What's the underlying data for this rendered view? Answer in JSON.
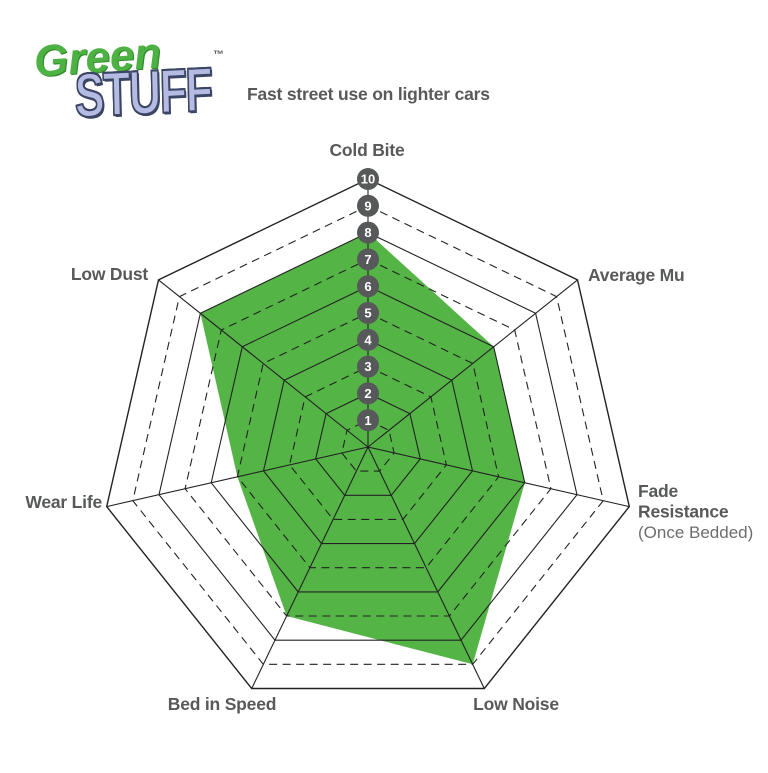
{
  "logo": {
    "word1": "Green",
    "word2": "Stuff",
    "tm": "™"
  },
  "subtitle": "Fast street use on lighter cars",
  "colors": {
    "fill_green": "#55b446",
    "logo_green": "#4db243",
    "logo_lavender": "#b6bbe3",
    "logo_outline": "#3a4663",
    "label_gray": "#58595b",
    "sublabel_gray": "#6d6e71",
    "badge_gray": "#57585a",
    "badge_text": "#ffffff",
    "grid_line": "#222222"
  },
  "chart_data": {
    "type": "radar",
    "title": "Fast street use on lighter cars",
    "categories": [
      "Cold Bite",
      "Average Mu",
      "Fade Resistance",
      "Low Noise",
      "Bed in Speed",
      "Wear Life",
      "Low Dust"
    ],
    "category_sublabels": [
      "",
      "",
      "(Once Bedded)",
      "",
      "",
      "",
      ""
    ],
    "series": [
      {
        "name": "Green Stuff",
        "values": [
          8,
          6,
          6,
          9,
          7,
          5,
          8
        ]
      }
    ],
    "scale": {
      "min": 0,
      "max": 10,
      "tick_labels": [
        "1",
        "2",
        "3",
        "4",
        "5",
        "6",
        "7",
        "8",
        "9",
        "10"
      ]
    },
    "grid": {
      "rings": 10,
      "shape": "heptagon",
      "even_rings": "solid",
      "odd_rings": "dashed"
    },
    "legend": "none"
  }
}
